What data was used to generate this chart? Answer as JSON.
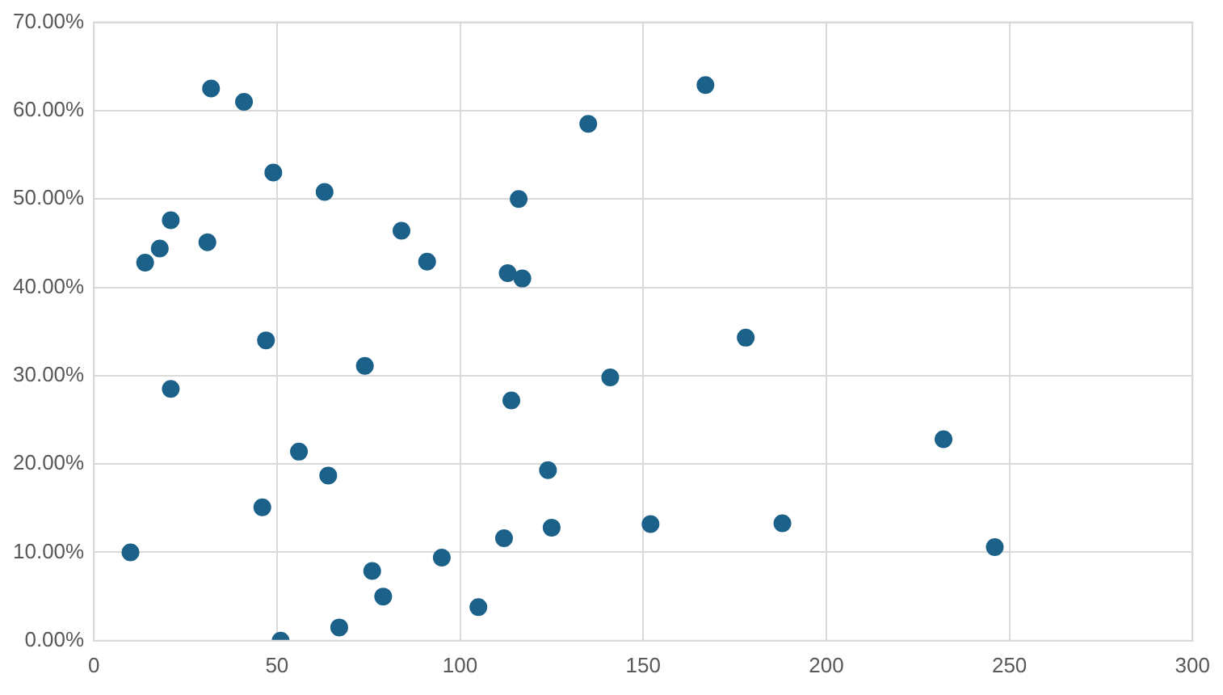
{
  "chart_data": {
    "type": "scatter",
    "marker": "circle",
    "grid": true,
    "legend": false,
    "xlim": [
      0,
      300
    ],
    "xticks": [
      0,
      50,
      100,
      150,
      200,
      250,
      300
    ],
    "ylim": [
      0,
      0.7
    ],
    "yticks": [
      {
        "value": 0,
        "label": "0.00%"
      },
      {
        "value": 0.1,
        "label": "10.00%"
      },
      {
        "value": 0.2,
        "label": "20.00%"
      },
      {
        "value": 0.3,
        "label": "30.00%"
      },
      {
        "value": 0.4,
        "label": "40.00%"
      },
      {
        "value": 0.5,
        "label": "50.00%"
      },
      {
        "value": 0.6,
        "label": "60.00%"
      },
      {
        "value": 0.7,
        "label": "70.00%"
      }
    ],
    "series": [
      {
        "color": "#1b6189",
        "x": [
          32,
          41,
          49,
          63,
          21,
          18,
          14,
          31,
          84,
          91,
          116,
          113,
          117,
          135,
          47,
          167,
          178,
          141,
          232,
          152,
          188,
          246,
          74,
          21,
          114,
          56,
          64,
          124,
          46,
          125,
          112,
          10,
          95,
          76,
          79,
          105,
          67,
          51
        ],
        "values": [
          0.625,
          0.61,
          0.53,
          0.508,
          0.476,
          0.444,
          0.428,
          0.451,
          0.464,
          0.429,
          0.5,
          0.416,
          0.41,
          0.585,
          0.34,
          0.629,
          0.343,
          0.298,
          0.228,
          0.132,
          0.133,
          0.106,
          0.311,
          0.285,
          0.272,
          0.214,
          0.187,
          0.193,
          0.151,
          0.128,
          0.116,
          0.1,
          0.094,
          0.079,
          0.05,
          0.038,
          0.015,
          0
        ]
      }
    ]
  }
}
